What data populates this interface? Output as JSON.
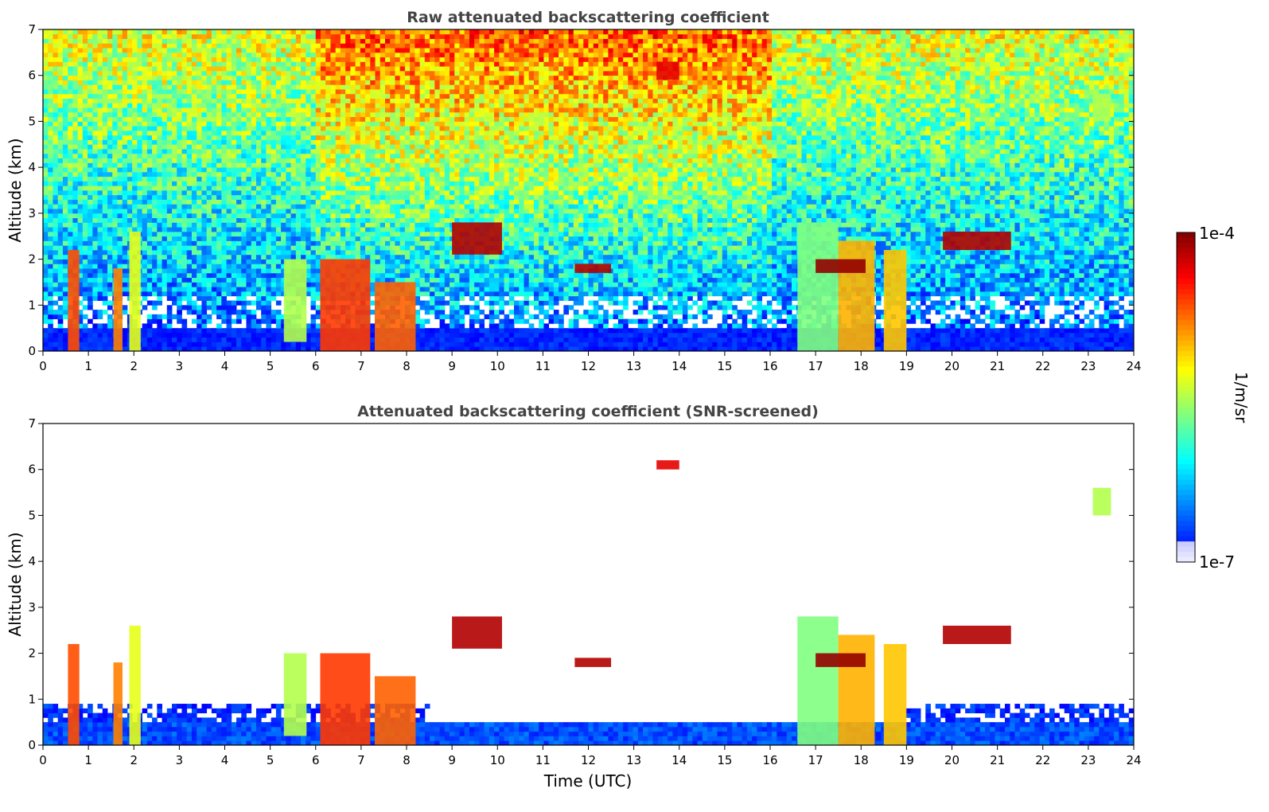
{
  "chart_data": [
    {
      "type": "heatmap",
      "title": "Raw attenuated backscattering coefficient",
      "xlabel": "",
      "ylabel": "Altitude (km)",
      "xlim": [
        0,
        24
      ],
      "ylim": [
        0,
        7
      ],
      "xticks": [
        "0",
        "1",
        "2",
        "3",
        "4",
        "5",
        "6",
        "7",
        "8",
        "9",
        "10",
        "11",
        "12",
        "13",
        "14",
        "15",
        "16",
        "17",
        "18",
        "19",
        "20",
        "21",
        "22",
        "23",
        "24"
      ],
      "yticks": [
        "0",
        "1",
        "2",
        "3",
        "4",
        "5",
        "6",
        "7"
      ],
      "background": "noisy",
      "features": [
        {
          "t0": 0.55,
          "t1": 0.8,
          "z0": 0,
          "z1": 2.2,
          "level": 0.8
        },
        {
          "t0": 1.55,
          "t1": 1.75,
          "z0": 0,
          "z1": 1.8,
          "level": 0.75
        },
        {
          "t0": 1.9,
          "t1": 2.15,
          "z0": 0,
          "z1": 2.6,
          "level": 0.6
        },
        {
          "t0": 5.3,
          "t1": 5.8,
          "z0": 0.2,
          "z1": 2.0,
          "level": 0.55
        },
        {
          "t0": 6.1,
          "t1": 7.2,
          "z0": 0,
          "z1": 2.0,
          "level": 0.82
        },
        {
          "t0": 7.3,
          "t1": 8.2,
          "z0": 0,
          "z1": 1.5,
          "level": 0.78
        },
        {
          "t0": 16.6,
          "t1": 17.5,
          "z0": 0,
          "z1": 2.8,
          "level": 0.5
        },
        {
          "t0": 17.5,
          "t1": 18.3,
          "z0": 0,
          "z1": 2.4,
          "level": 0.7
        },
        {
          "t0": 18.5,
          "t1": 19.0,
          "z0": 0,
          "z1": 2.2,
          "level": 0.68
        },
        {
          "t0": 17.0,
          "t1": 18.1,
          "z0": 1.7,
          "z1": 2.0,
          "level": 0.98
        },
        {
          "t0": 9.0,
          "t1": 10.1,
          "z0": 2.1,
          "z1": 2.8,
          "level": 0.95
        },
        {
          "t0": 11.7,
          "t1": 12.5,
          "z0": 1.7,
          "z1": 1.9,
          "level": 0.95
        },
        {
          "t0": 13.5,
          "t1": 14.0,
          "z0": 5.9,
          "z1": 6.3,
          "level": 0.9
        },
        {
          "t0": 23.1,
          "t1": 23.5,
          "z0": 5.0,
          "z1": 5.6,
          "level": 0.55
        },
        {
          "t0": 19.8,
          "t1": 21.3,
          "z0": 2.2,
          "z1": 2.6,
          "level": 0.95
        }
      ]
    },
    {
      "type": "heatmap",
      "title": "Attenuated backscattering coefficient (SNR-screened)",
      "xlabel": "Time (UTC)",
      "ylabel": "Altitude (km)",
      "xlim": [
        0,
        24
      ],
      "ylim": [
        0,
        7
      ],
      "xticks": [
        "0",
        "1",
        "2",
        "3",
        "4",
        "5",
        "6",
        "7",
        "8",
        "9",
        "10",
        "11",
        "12",
        "13",
        "14",
        "15",
        "16",
        "17",
        "18",
        "19",
        "20",
        "21",
        "22",
        "23",
        "24"
      ],
      "yticks": [
        "0",
        "1",
        "2",
        "3",
        "4",
        "5",
        "6",
        "7"
      ],
      "background": "screened",
      "features": [
        {
          "t0": 0.55,
          "t1": 0.8,
          "z0": 0,
          "z1": 2.2,
          "level": 0.8
        },
        {
          "t0": 1.55,
          "t1": 1.75,
          "z0": 0,
          "z1": 1.8,
          "level": 0.75
        },
        {
          "t0": 1.9,
          "t1": 2.15,
          "z0": 0,
          "z1": 2.6,
          "level": 0.6
        },
        {
          "t0": 5.3,
          "t1": 5.8,
          "z0": 0.2,
          "z1": 2.0,
          "level": 0.55
        },
        {
          "t0": 6.1,
          "t1": 7.2,
          "z0": 0,
          "z1": 2.0,
          "level": 0.82
        },
        {
          "t0": 7.3,
          "t1": 8.2,
          "z0": 0,
          "z1": 1.5,
          "level": 0.78
        },
        {
          "t0": 16.6,
          "t1": 17.5,
          "z0": 0,
          "z1": 2.8,
          "level": 0.5
        },
        {
          "t0": 17.5,
          "t1": 18.3,
          "z0": 0,
          "z1": 2.4,
          "level": 0.7
        },
        {
          "t0": 18.5,
          "t1": 19.0,
          "z0": 0,
          "z1": 2.2,
          "level": 0.68
        },
        {
          "t0": 17.0,
          "t1": 18.1,
          "z0": 1.7,
          "z1": 2.0,
          "level": 0.98
        },
        {
          "t0": 9.0,
          "t1": 10.1,
          "z0": 2.1,
          "z1": 2.8,
          "level": 0.95
        },
        {
          "t0": 11.7,
          "t1": 12.5,
          "z0": 1.7,
          "z1": 1.9,
          "level": 0.95
        },
        {
          "t0": 13.5,
          "t1": 14.0,
          "z0": 6.0,
          "z1": 6.2,
          "level": 0.9
        },
        {
          "t0": 23.1,
          "t1": 23.5,
          "z0": 5.0,
          "z1": 5.6,
          "level": 0.55
        },
        {
          "t0": 19.8,
          "t1": 21.3,
          "z0": 2.2,
          "z1": 2.6,
          "level": 0.95
        }
      ]
    }
  ],
  "colorbar": {
    "max_label": "1e-4",
    "min_label": "1e-7",
    "unit_label": "1/m/sr",
    "colormap": "jet"
  }
}
